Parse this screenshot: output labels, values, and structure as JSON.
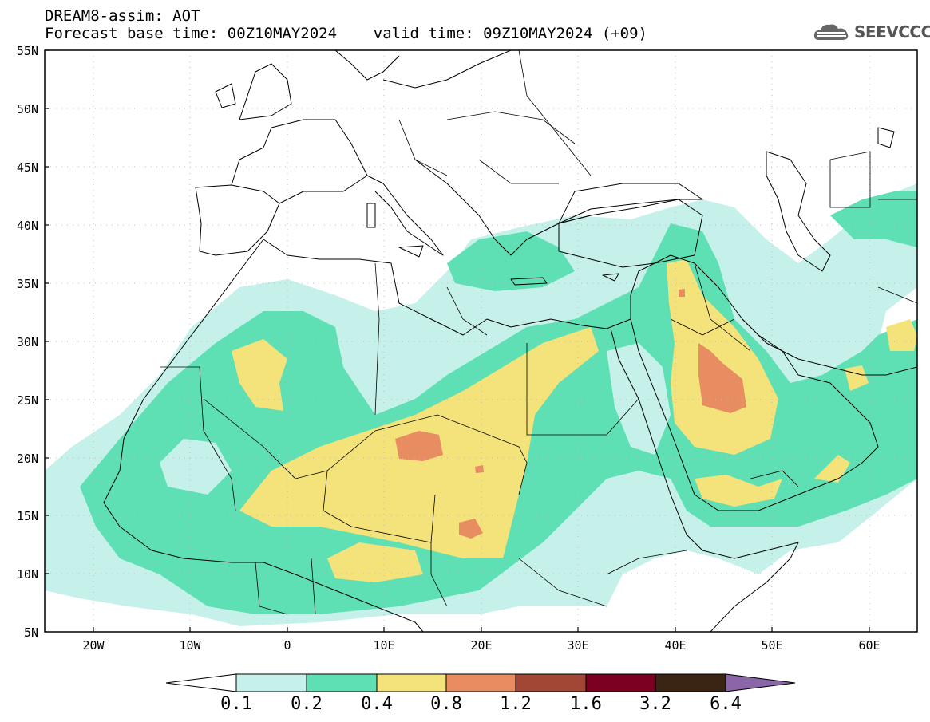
{
  "header": {
    "title_line1": "DREAM8-assim: AOT",
    "title_line2": "Forecast base time: 00Z10MAY2024    valid time: 09Z10MAY2024 (+09)",
    "logo_text": "SEEVCCC"
  },
  "map": {
    "lat_labels": [
      "55N",
      "50N",
      "45N",
      "40N",
      "35N",
      "30N",
      "25N",
      "20N",
      "15N",
      "10N",
      "5N"
    ],
    "lon_labels": [
      "20W",
      "10W",
      "0",
      "10E",
      "20E",
      "30E",
      "40E",
      "50E",
      "60E"
    ],
    "lon_range": [
      -25,
      65
    ],
    "lat_range": [
      5,
      55
    ]
  },
  "colorbar": {
    "levels": [
      "0.1",
      "0.2",
      "0.4",
      "0.8",
      "1.2",
      "1.6",
      "3.2",
      "6.4"
    ],
    "colors": [
      "#ffffff",
      "#c6f1ea",
      "#5fe0b4",
      "#f4e27a",
      "#e88c62",
      "#a24636",
      "#7a0022",
      "#3a2414",
      "#8a66a8"
    ]
  }
}
